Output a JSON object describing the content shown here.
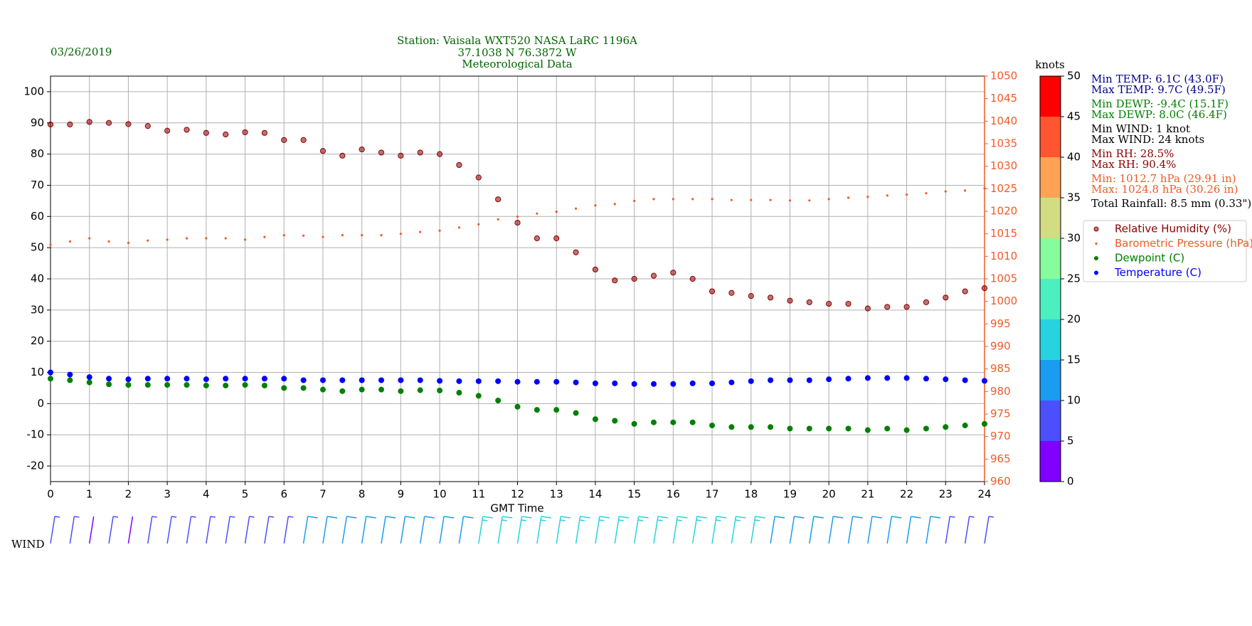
{
  "chart_data": {
    "type": "scatter",
    "date": "03/26/2019",
    "title": [
      "Station:  Vaisala WXT520  NASA LaRC 1196A",
      "37.1038 N 76.3872 W",
      "Meteorological Data"
    ],
    "xlabel": "GMT Time",
    "x": [
      0,
      0.5,
      1,
      1.5,
      2,
      2.5,
      3,
      3.5,
      4,
      4.5,
      5,
      5.5,
      6,
      6.5,
      7,
      7.5,
      8,
      8.5,
      9,
      9.5,
      10,
      10.5,
      11,
      11.5,
      12,
      12.5,
      13,
      13.5,
      14,
      14.5,
      15,
      15.5,
      16,
      16.5,
      17,
      17.5,
      18,
      18.5,
      19,
      19.5,
      20,
      20.5,
      21,
      21.5,
      22,
      22.5,
      23,
      23.5,
      24
    ],
    "xlim": [
      0,
      24
    ],
    "xticks": [
      0,
      1,
      2,
      3,
      4,
      5,
      6,
      7,
      8,
      9,
      10,
      11,
      12,
      13,
      14,
      15,
      16,
      17,
      18,
      19,
      20,
      21,
      22,
      23,
      24
    ],
    "ylim": [
      -25,
      105
    ],
    "yticks": [
      -20,
      -10,
      0,
      10,
      20,
      30,
      40,
      50,
      60,
      70,
      80,
      90,
      100
    ],
    "y2lim": [
      960,
      1050
    ],
    "y2ticks": [
      960,
      965,
      970,
      975,
      980,
      985,
      990,
      995,
      1000,
      1005,
      1010,
      1015,
      1020,
      1025,
      1030,
      1035,
      1040,
      1045,
      1050
    ],
    "y2color": "#f05a28",
    "grid": true,
    "legend": "right",
    "series": [
      {
        "name": "Relative Humidity (%)",
        "color": "#8b0000",
        "values": [
          89.5,
          89.5,
          90.3,
          90,
          89.6,
          89,
          87.5,
          87.8,
          86.8,
          86.3,
          87,
          86.8,
          84.5,
          84.5,
          81,
          79.5,
          81.5,
          80.5,
          79.5,
          80.5,
          80,
          76.5,
          72.5,
          65.5,
          58,
          53,
          53,
          48.5,
          43,
          39.5,
          40,
          41,
          42,
          40,
          36,
          35.5,
          34.5,
          34,
          33,
          32.5,
          32,
          32,
          30.5,
          31,
          31,
          32.5,
          34,
          36,
          37
        ]
      },
      {
        "name": "Barometric Pressure (hPa)",
        "color": "#f05a28",
        "axis": "y2",
        "values": [
          1012.6,
          1013.3,
          1014.0,
          1013.3,
          1013.0,
          1013.5,
          1013.7,
          1014.0,
          1014.0,
          1014.0,
          1013.7,
          1014.3,
          1014.7,
          1014.6,
          1014.3,
          1014.7,
          1014.7,
          1014.7,
          1015.0,
          1015.4,
          1015.7,
          1016.4,
          1017.1,
          1018.2,
          1018.8,
          1019.5,
          1019.9,
          1020.6,
          1021.3,
          1021.6,
          1022.3,
          1022.7,
          1022.7,
          1022.7,
          1022.7,
          1022.5,
          1022.5,
          1022.5,
          1022.4,
          1022.4,
          1022.7,
          1023.0,
          1023.2,
          1023.5,
          1023.7,
          1024.0,
          1024.4,
          1024.6,
          1025.1
        ]
      },
      {
        "name": "Dewpoint (C)",
        "color": "#008000",
        "values": [
          8,
          7.5,
          6.8,
          6.2,
          6,
          6,
          6,
          6,
          5.8,
          5.8,
          6,
          5.8,
          5,
          5,
          4.5,
          4,
          4.5,
          4.5,
          4,
          4.3,
          4.2,
          3.5,
          2.5,
          1,
          -1,
          -2,
          -2,
          -3,
          -5,
          -5.5,
          -6.5,
          -6,
          -6,
          -6,
          -7,
          -7.5,
          -7.5,
          -7.5,
          -8,
          -8,
          -8,
          -8,
          -8.5,
          -8,
          -8.5,
          -8,
          -7.5,
          -7,
          -6.5
        ]
      },
      {
        "name": "Temperature (C)",
        "color": "#0000ff",
        "values": [
          10,
          9.3,
          8.5,
          8,
          7.8,
          8,
          8,
          8,
          7.8,
          8,
          8,
          8,
          8,
          7.5,
          7.5,
          7.5,
          7.5,
          7.5,
          7.5,
          7.5,
          7.3,
          7.2,
          7.2,
          7.2,
          7,
          7,
          7,
          6.8,
          6.5,
          6.5,
          6.3,
          6.3,
          6.3,
          6.5,
          6.5,
          6.8,
          7.2,
          7.5,
          7.5,
          7.5,
          7.8,
          8,
          8.2,
          8.2,
          8.2,
          8,
          7.8,
          7.5,
          7.3
        ]
      }
    ],
    "wind": {
      "label": "WIND",
      "speed": [
        8,
        6,
        4,
        5,
        4,
        6,
        7,
        7,
        8,
        8,
        8,
        9,
        9,
        10,
        11,
        12,
        12,
        13,
        13,
        13,
        14,
        14,
        15,
        16,
        16,
        16,
        17,
        17,
        17,
        18,
        18,
        19,
        18,
        17,
        16,
        16,
        15,
        14,
        14,
        13,
        13,
        12,
        12,
        11,
        11,
        10,
        9,
        9,
        9
      ]
    },
    "colorbar": {
      "label": "knots",
      "ticks": [
        0,
        5,
        10,
        15,
        20,
        25,
        30,
        35,
        40,
        45,
        50
      ],
      "colors": [
        "#8000ff",
        "#4b50fc",
        "#1a9cf0",
        "#27d3e0",
        "#4cf0c0",
        "#86fd9c",
        "#d2dc80",
        "#ffa256",
        "#ff5530",
        "#ff0000"
      ]
    },
    "stats": [
      {
        "color": "#00008b",
        "lines": [
          "Min TEMP: 6.1C (43.0F)",
          "Max TEMP: 9.7C (49.5F)"
        ]
      },
      {
        "color": "#008000",
        "lines": [
          "Min DEWP: -9.4C (15.1F)",
          "Max DEWP: 8.0C (46.4F)"
        ]
      },
      {
        "color": "#000000",
        "lines": [
          "Min WIND: 1 knot",
          "Max WIND: 24 knots"
        ]
      },
      {
        "color": "#8b0000",
        "lines": [
          "Min RH: 28.5%",
          "Max RH: 90.4%"
        ]
      },
      {
        "color": "#f05a28",
        "lines": [
          "Min: 1012.7 hPa (29.91 in)",
          "Max: 1024.8 hPa (30.26 in)"
        ]
      },
      {
        "color": "#000000",
        "lines": [
          "Total Rainfall: 8.5 mm (0.33\")"
        ]
      }
    ]
  }
}
